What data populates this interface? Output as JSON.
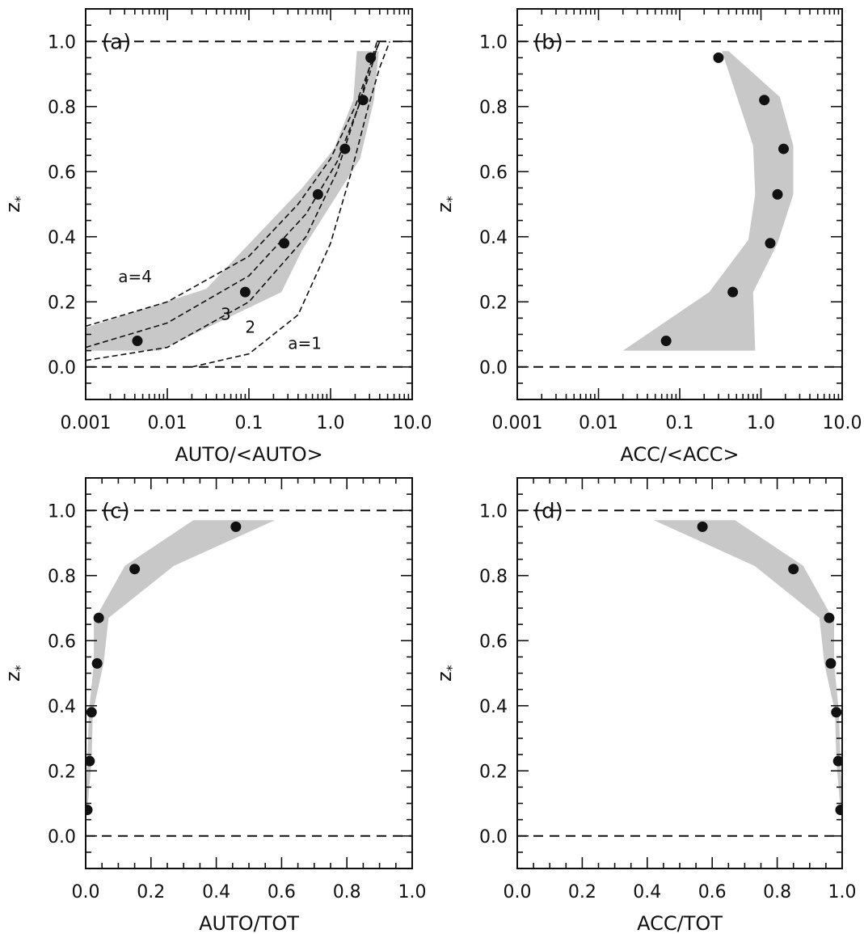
{
  "chart_data": [
    {
      "type": "scatter",
      "panel_label": "(a)",
      "xlabel": "AUTO/<AUTO>",
      "ylabel": "z",
      "ylabel_sub": "*",
      "xscale": "log",
      "xlim": [
        0.001,
        10.0
      ],
      "ylim": [
        -0.1,
        1.1
      ],
      "xticks": [
        0.001,
        0.01,
        0.1,
        1.0,
        10.0
      ],
      "xtick_labels": [
        "0.001",
        "0.01",
        "0.1",
        "1.0",
        "10.0"
      ],
      "yticks": [
        0.0,
        0.2,
        0.4,
        0.6,
        0.8,
        1.0
      ],
      "ytick_labels": [
        "0.0",
        "0.2",
        "0.4",
        "0.6",
        "0.8",
        "1.0"
      ],
      "reference_lines_y": [
        0.0,
        1.0
      ],
      "points": [
        {
          "x": 0.0043,
          "y": 0.08
        },
        {
          "x": 0.09,
          "y": 0.23
        },
        {
          "x": 0.27,
          "y": 0.38
        },
        {
          "x": 0.7,
          "y": 0.53
        },
        {
          "x": 1.5,
          "y": 0.67
        },
        {
          "x": 2.5,
          "y": 0.82
        },
        {
          "x": 3.1,
          "y": 0.95
        }
      ],
      "band": {
        "upper": [
          [
            0.001,
            0.12
          ],
          [
            0.03,
            0.24
          ],
          [
            0.45,
            0.55
          ],
          [
            1.1,
            0.67
          ],
          [
            1.9,
            0.82
          ],
          [
            2.1,
            0.97
          ]
        ],
        "lower": [
          [
            3.9,
            0.97
          ],
          [
            3.4,
            0.82
          ],
          [
            2.3,
            0.64
          ],
          [
            0.45,
            0.36
          ],
          [
            0.25,
            0.23
          ],
          [
            0.008,
            0.05
          ],
          [
            0.001,
            0.05
          ]
        ]
      },
      "curves": [
        {
          "label": "a=4",
          "points": [
            [
              0.001,
              0.125
            ],
            [
              0.01,
              0.2
            ],
            [
              0.1,
              0.34
            ],
            [
              0.4,
              0.5
            ],
            [
              1.0,
              0.64
            ],
            [
              2.0,
              0.8
            ],
            [
              3.0,
              0.92
            ],
            [
              4.0,
              1.0
            ]
          ]
        },
        {
          "label": "3",
          "points": [
            [
              0.001,
              0.06
            ],
            [
              0.01,
              0.135
            ],
            [
              0.1,
              0.28
            ],
            [
              0.5,
              0.47
            ],
            [
              1.2,
              0.63
            ],
            [
              2.2,
              0.8
            ],
            [
              3.0,
              0.92
            ],
            [
              3.7,
              1.0
            ]
          ]
        },
        {
          "label": "2",
          "points": [
            [
              0.001,
              0.02
            ],
            [
              0.01,
              0.06
            ],
            [
              0.1,
              0.2
            ],
            [
              0.5,
              0.4
            ],
            [
              1.2,
              0.6
            ],
            [
              2.0,
              0.77
            ],
            [
              3.0,
              0.9
            ],
            [
              3.9,
              1.0
            ]
          ]
        },
        {
          "label": "a=1",
          "points": [
            [
              0.02,
              0.0
            ],
            [
              0.1,
              0.04
            ],
            [
              0.4,
              0.16
            ],
            [
              1.0,
              0.38
            ],
            [
              1.8,
              0.6
            ],
            [
              2.9,
              0.8
            ],
            [
              4.0,
              0.92
            ],
            [
              5.3,
              1.0
            ]
          ]
        }
      ],
      "curve_labels": [
        {
          "text": "a=4",
          "x": 0.0025,
          "y": 0.26
        },
        {
          "text": "3",
          "x": 0.045,
          "y": 0.145
        },
        {
          "text": "2",
          "x": 0.09,
          "y": 0.105
        },
        {
          "text": "a=1",
          "x": 0.3,
          "y": 0.055
        }
      ]
    },
    {
      "type": "scatter",
      "panel_label": "(b)",
      "xlabel": "ACC/<ACC>",
      "ylabel": "z",
      "ylabel_sub": "*",
      "xscale": "log",
      "xlim": [
        0.001,
        10.0
      ],
      "ylim": [
        -0.1,
        1.1
      ],
      "xticks": [
        0.001,
        0.01,
        0.1,
        1.0,
        10.0
      ],
      "xtick_labels": [
        "0.001",
        "0.01",
        "0.1",
        "1.0",
        "10.0"
      ],
      "yticks": [
        0.0,
        0.2,
        0.4,
        0.6,
        0.8,
        1.0
      ],
      "ytick_labels": [
        "0.0",
        "0.2",
        "0.4",
        "0.6",
        "0.8",
        "1.0"
      ],
      "reference_lines_y": [
        0.0,
        1.0
      ],
      "points": [
        {
          "x": 0.068,
          "y": 0.08
        },
        {
          "x": 0.45,
          "y": 0.23
        },
        {
          "x": 1.3,
          "y": 0.38
        },
        {
          "x": 1.6,
          "y": 0.53
        },
        {
          "x": 1.9,
          "y": 0.67
        },
        {
          "x": 1.1,
          "y": 0.82
        },
        {
          "x": 0.3,
          "y": 0.95
        }
      ],
      "band": {
        "upper": [
          [
            0.02,
            0.05
          ],
          [
            0.23,
            0.23
          ],
          [
            0.7,
            0.39
          ],
          [
            0.85,
            0.53
          ],
          [
            0.8,
            0.68
          ],
          [
            0.33,
            0.97
          ]
        ],
        "lower": [
          [
            0.4,
            0.97
          ],
          [
            1.7,
            0.83
          ],
          [
            2.5,
            0.68
          ],
          [
            2.5,
            0.53
          ],
          [
            1.6,
            0.38
          ],
          [
            0.8,
            0.23
          ],
          [
            0.85,
            0.05
          ]
        ]
      }
    },
    {
      "type": "scatter",
      "panel_label": "(c)",
      "xlabel": "AUTO/TOT",
      "ylabel": "z",
      "ylabel_sub": "*",
      "xscale": "linear",
      "xlim": [
        0.0,
        1.0
      ],
      "ylim": [
        -0.1,
        1.1
      ],
      "xticks": [
        0.0,
        0.2,
        0.4,
        0.6,
        0.8,
        1.0
      ],
      "xtick_labels": [
        "0.0",
        "0.2",
        "0.4",
        "0.6",
        "0.8",
        "1.0"
      ],
      "yticks": [
        0.0,
        0.2,
        0.4,
        0.6,
        0.8,
        1.0
      ],
      "ytick_labels": [
        "0.0",
        "0.2",
        "0.4",
        "0.6",
        "0.8",
        "1.0"
      ],
      "reference_lines_y": [
        0.0,
        1.0
      ],
      "points": [
        {
          "x": 0.005,
          "y": 0.08
        },
        {
          "x": 0.012,
          "y": 0.23
        },
        {
          "x": 0.018,
          "y": 0.38
        },
        {
          "x": 0.035,
          "y": 0.53
        },
        {
          "x": 0.04,
          "y": 0.67
        },
        {
          "x": 0.15,
          "y": 0.82
        },
        {
          "x": 0.46,
          "y": 0.95
        }
      ],
      "band": {
        "upper": [
          [
            0.0,
            0.08
          ],
          [
            0.005,
            0.23
          ],
          [
            0.01,
            0.38
          ],
          [
            0.025,
            0.53
          ],
          [
            0.025,
            0.66
          ],
          [
            0.12,
            0.83
          ],
          [
            0.33,
            0.97
          ]
        ],
        "lower": [
          [
            0.58,
            0.97
          ],
          [
            0.27,
            0.83
          ],
          [
            0.07,
            0.67
          ],
          [
            0.055,
            0.53
          ],
          [
            0.022,
            0.38
          ],
          [
            0.018,
            0.23
          ],
          [
            0.005,
            0.08
          ]
        ]
      }
    },
    {
      "type": "scatter",
      "panel_label": "(d)",
      "xlabel": "ACC/TOT",
      "ylabel": "z",
      "ylabel_sub": "*",
      "xscale": "linear",
      "xlim": [
        0.0,
        1.0
      ],
      "ylim": [
        -0.1,
        1.1
      ],
      "xticks": [
        0.0,
        0.2,
        0.4,
        0.6,
        0.8,
        1.0
      ],
      "xtick_labels": [
        "0.0",
        "0.2",
        "0.4",
        "0.6",
        "0.8",
        "1.0"
      ],
      "yticks": [
        0.0,
        0.2,
        0.4,
        0.6,
        0.8,
        1.0
      ],
      "ytick_labels": [
        "0.0",
        "0.2",
        "0.4",
        "0.6",
        "0.8",
        "1.0"
      ],
      "reference_lines_y": [
        0.0,
        1.0
      ],
      "points": [
        {
          "x": 0.995,
          "y": 0.08
        },
        {
          "x": 0.988,
          "y": 0.23
        },
        {
          "x": 0.982,
          "y": 0.38
        },
        {
          "x": 0.965,
          "y": 0.53
        },
        {
          "x": 0.96,
          "y": 0.67
        },
        {
          "x": 0.85,
          "y": 0.82
        },
        {
          "x": 0.57,
          "y": 0.95
        }
      ],
      "band": {
        "upper": [
          [
            0.42,
            0.97
          ],
          [
            0.73,
            0.83
          ],
          [
            0.93,
            0.67
          ],
          [
            0.945,
            0.53
          ],
          [
            0.978,
            0.38
          ],
          [
            0.982,
            0.23
          ],
          [
            0.995,
            0.08
          ]
        ],
        "lower": [
          [
            1.0,
            0.08
          ],
          [
            0.995,
            0.23
          ],
          [
            0.99,
            0.38
          ],
          [
            0.975,
            0.53
          ],
          [
            0.975,
            0.66
          ],
          [
            0.88,
            0.83
          ],
          [
            0.67,
            0.97
          ]
        ]
      }
    }
  ]
}
